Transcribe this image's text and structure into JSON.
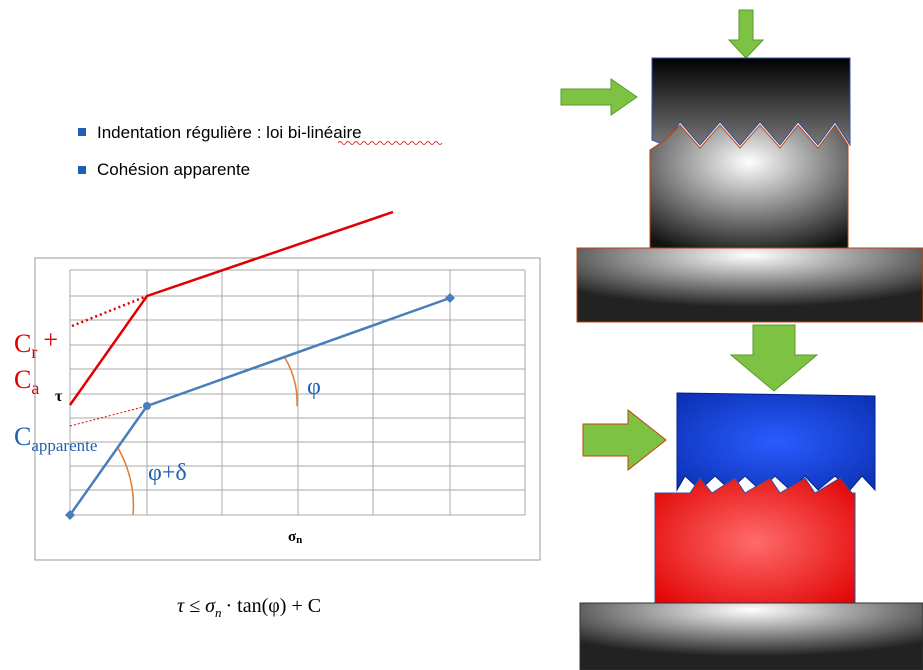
{
  "bullets": [
    "Indentation régulière : loi bi-linéaire",
    "Cohésion apparente"
  ],
  "graph": {
    "c_r": {
      "symbol": "C",
      "subscript": "r",
      "suffix": "+"
    },
    "c_a": {
      "symbol": "C",
      "subscript": "a"
    },
    "tau": "τ",
    "c_apparente": {
      "symbol": "C",
      "subscript": "apparente"
    },
    "phi": "φ",
    "phi_delta": "φ+δ",
    "sigma_n": {
      "symbol": "σ",
      "subscript": "n"
    }
  },
  "formula": {
    "lhs": "τ ≤ σ",
    "subscript": "n",
    "rhs": "· tan(φ) + C"
  }
}
